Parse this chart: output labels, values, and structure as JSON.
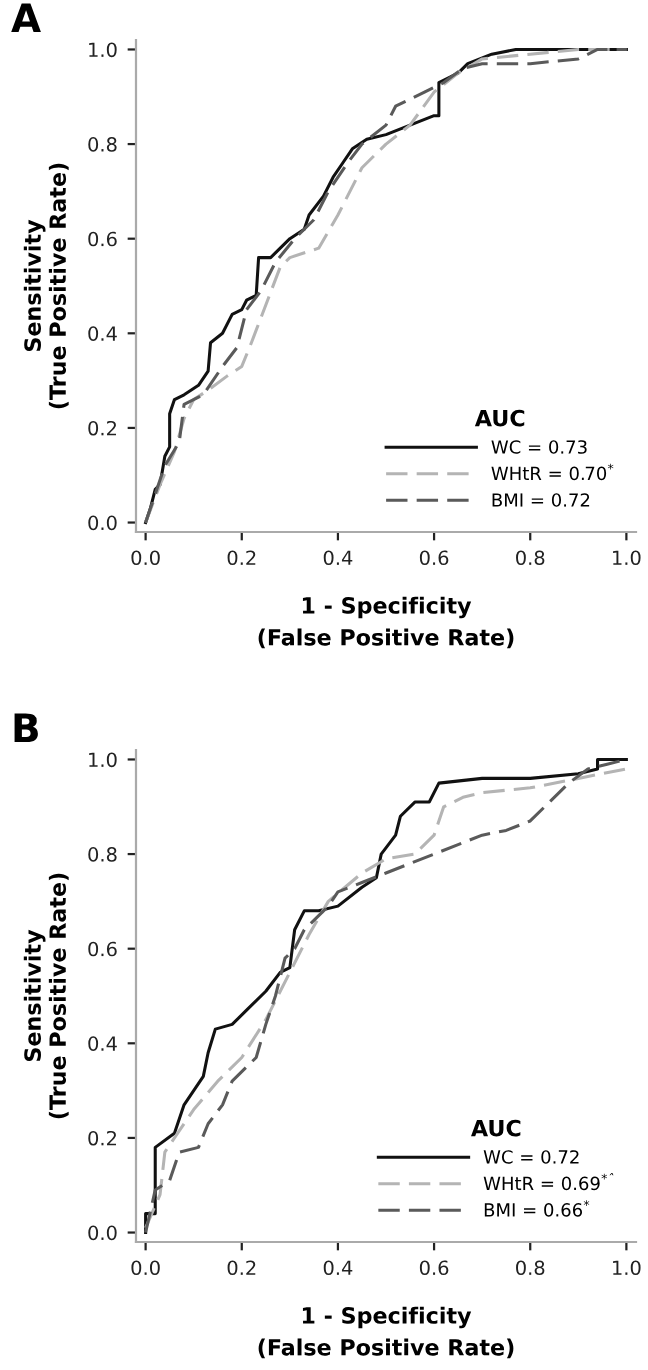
{
  "chart_data": [
    {
      "type": "line",
      "title": "A",
      "xlabel": "1 - Specificity\n(False Positive Rate)",
      "ylabel": "Sensitivity\n(True Positive Rate)",
      "legend_title": "AUC",
      "legend": "bottom right",
      "grid": false,
      "xlim": [
        -0.02,
        1.02
      ],
      "ylim": [
        -0.02,
        1.02
      ],
      "xticks": [
        {
          "value": 0,
          "label": "0.0"
        },
        {
          "value": 0.2,
          "label": "0.2"
        },
        {
          "value": 0.4,
          "label": "0.4"
        },
        {
          "value": 0.6,
          "label": "0.6"
        },
        {
          "value": 0.8,
          "label": "0.8"
        },
        {
          "value": 1,
          "label": "1.0"
        }
      ],
      "yticks": [
        {
          "value": 0,
          "label": "0.0"
        },
        {
          "value": 0.2,
          "label": "0.2"
        },
        {
          "value": 0.4,
          "label": "0.4"
        },
        {
          "value": 0.6,
          "label": "0.6"
        },
        {
          "value": 0.8,
          "label": "0.8"
        },
        {
          "value": 1,
          "label": "1.0"
        }
      ],
      "series": [
        {
          "name": "WC = 0.73",
          "color": "#111111",
          "line_style": "solid",
          "x": [
            0,
            0.01,
            0.02,
            0.03,
            0.04,
            0.05,
            0.05,
            0.06,
            0.08,
            0.11,
            0.13,
            0.135,
            0.16,
            0.18,
            0.2,
            0.21,
            0.23,
            0.235,
            0.26,
            0.27,
            0.3,
            0.33,
            0.34,
            0.37,
            0.39,
            0.41,
            0.43,
            0.46,
            0.5,
            0.55,
            0.6,
            0.61,
            0.61,
            0.65,
            0.67,
            0.72,
            0.77,
            1.0
          ],
          "values": [
            0,
            0.03,
            0.07,
            0.08,
            0.14,
            0.16,
            0.23,
            0.26,
            0.27,
            0.29,
            0.32,
            0.38,
            0.4,
            0.44,
            0.45,
            0.47,
            0.48,
            0.56,
            0.56,
            0.57,
            0.6,
            0.62,
            0.65,
            0.69,
            0.73,
            0.76,
            0.79,
            0.81,
            0.82,
            0.84,
            0.86,
            0.86,
            0.93,
            0.95,
            0.97,
            0.99,
            1.0,
            1.0
          ]
        },
        {
          "name": "WHtR = 0.70$^{*}$",
          "color": "#b4b4b4",
          "line_style": "dashed",
          "x": [
            0,
            0.03,
            0.06,
            0.08,
            0.1,
            0.13,
            0.17,
            0.2,
            0.22,
            0.25,
            0.28,
            0.3,
            0.36,
            0.4,
            0.45,
            0.5,
            0.55,
            0.6,
            0.65,
            0.7,
            0.8,
            0.9,
            1.0
          ],
          "values": [
            0,
            0.08,
            0.15,
            0.22,
            0.26,
            0.28,
            0.31,
            0.33,
            0.38,
            0.46,
            0.54,
            0.56,
            0.58,
            0.65,
            0.75,
            0.8,
            0.84,
            0.91,
            0.95,
            0.98,
            0.99,
            1.0,
            1.0
          ]
        },
        {
          "name": "BMI = 0.72",
          "color": "#5a5a5a",
          "line_style": "dashed",
          "x": [
            0,
            0.02,
            0.04,
            0.07,
            0.08,
            0.12,
            0.16,
            0.19,
            0.21,
            0.24,
            0.27,
            0.31,
            0.35,
            0.38,
            0.42,
            0.45,
            0.5,
            0.52,
            0.58,
            0.62,
            0.66,
            0.7,
            0.8,
            0.9,
            0.94,
            1.0
          ],
          "values": [
            0,
            0.06,
            0.12,
            0.17,
            0.25,
            0.27,
            0.33,
            0.37,
            0.45,
            0.49,
            0.55,
            0.6,
            0.64,
            0.7,
            0.76,
            0.8,
            0.84,
            0.88,
            0.91,
            0.93,
            0.96,
            0.97,
            0.97,
            0.98,
            1.0,
            1.0
          ]
        }
      ]
    },
    {
      "type": "line",
      "title": "B",
      "xlabel": "1 - Specificity\n(False Positive Rate)",
      "ylabel": "Sensitivity\n(True Positive Rate)",
      "legend_title": "AUC",
      "legend": "bottom right",
      "grid": false,
      "xlim": [
        -0.02,
        1.02
      ],
      "ylim": [
        -0.02,
        1.02
      ],
      "xticks": [
        {
          "value": 0,
          "label": "0.0"
        },
        {
          "value": 0.2,
          "label": "0.2"
        },
        {
          "value": 0.4,
          "label": "0.4"
        },
        {
          "value": 0.6,
          "label": "0.6"
        },
        {
          "value": 0.8,
          "label": "0.8"
        },
        {
          "value": 1,
          "label": "1.0"
        }
      ],
      "yticks": [
        {
          "value": 0,
          "label": "0.0"
        },
        {
          "value": 0.2,
          "label": "0.2"
        },
        {
          "value": 0.4,
          "label": "0.4"
        },
        {
          "value": 0.6,
          "label": "0.6"
        },
        {
          "value": 0.8,
          "label": "0.8"
        },
        {
          "value": 1,
          "label": "1.0"
        }
      ],
      "series": [
        {
          "name": "WC = 0.72",
          "color": "#111111",
          "line_style": "solid",
          "x": [
            0,
            0,
            0.02,
            0.02,
            0.06,
            0.08,
            0.1,
            0.12,
            0.13,
            0.145,
            0.18,
            0.21,
            0.25,
            0.28,
            0.3,
            0.31,
            0.33,
            0.36,
            0.4,
            0.45,
            0.48,
            0.49,
            0.52,
            0.53,
            0.56,
            0.59,
            0.61,
            0.7,
            0.8,
            0.9,
            0.94,
            0.94,
            1.0
          ],
          "values": [
            0,
            0.04,
            0.04,
            0.18,
            0.21,
            0.27,
            0.3,
            0.33,
            0.38,
            0.43,
            0.44,
            0.47,
            0.51,
            0.55,
            0.56,
            0.64,
            0.68,
            0.68,
            0.69,
            0.73,
            0.75,
            0.8,
            0.84,
            0.88,
            0.91,
            0.91,
            0.95,
            0.96,
            0.96,
            0.97,
            0.98,
            1.0,
            1.0
          ]
        },
        {
          "name": "WHtR = 0.69$^{*ˆ}$",
          "color": "#b4b4b4",
          "line_style": "dashed",
          "x": [
            0,
            0.03,
            0.04,
            0.06,
            0.1,
            0.15,
            0.2,
            0.25,
            0.3,
            0.34,
            0.38,
            0.45,
            0.5,
            0.56,
            0.6,
            0.62,
            0.66,
            0.7,
            0.8,
            0.9,
            1.0
          ],
          "values": [
            0.01,
            0.08,
            0.17,
            0.2,
            0.26,
            0.32,
            0.37,
            0.45,
            0.55,
            0.63,
            0.7,
            0.76,
            0.79,
            0.8,
            0.84,
            0.9,
            0.92,
            0.93,
            0.94,
            0.96,
            0.98
          ]
        },
        {
          "name": "BMI = 0.66$^{*}$",
          "color": "#5a5a5a",
          "line_style": "dashed",
          "x": [
            0,
            0.02,
            0.05,
            0.07,
            0.11,
            0.13,
            0.16,
            0.18,
            0.23,
            0.25,
            0.27,
            0.29,
            0.31,
            0.33,
            0.38,
            0.4,
            0.45,
            0.5,
            0.55,
            0.6,
            0.65,
            0.7,
            0.75,
            0.8,
            0.84,
            0.88,
            0.92,
            0.96,
            1.0
          ],
          "values": [
            0,
            0.09,
            0.11,
            0.17,
            0.18,
            0.23,
            0.27,
            0.32,
            0.37,
            0.44,
            0.5,
            0.58,
            0.6,
            0.64,
            0.69,
            0.72,
            0.74,
            0.76,
            0.78,
            0.8,
            0.82,
            0.84,
            0.85,
            0.87,
            0.91,
            0.95,
            0.98,
            0.99,
            1.0
          ]
        }
      ]
    }
  ]
}
